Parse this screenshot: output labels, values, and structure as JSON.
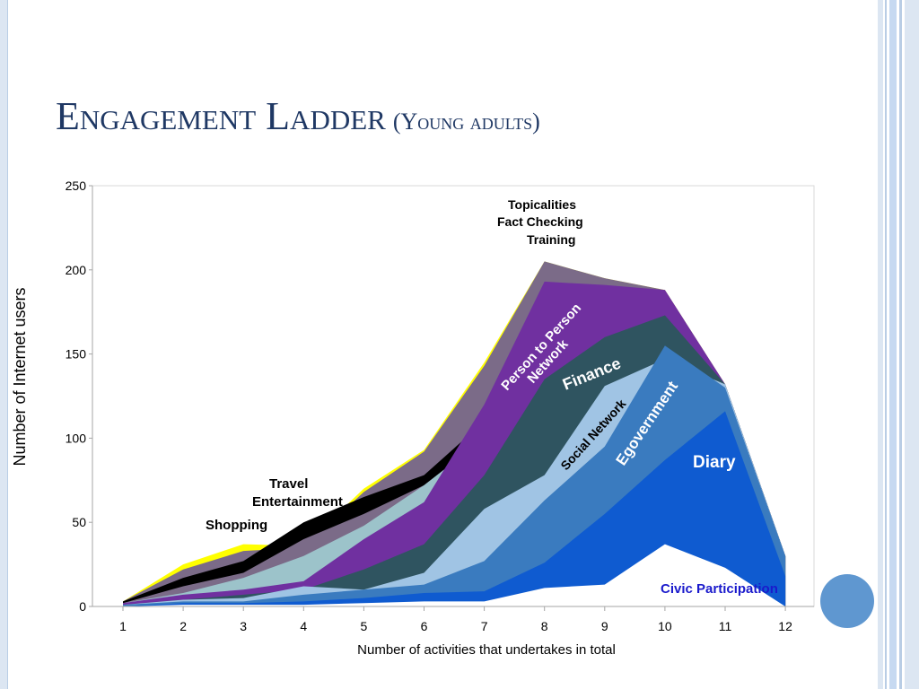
{
  "slide": {
    "title": "Engagement Ladder",
    "subtitle": "(Young adults)"
  },
  "chart_data": {
    "type": "area",
    "ylabel": "Number of Internet users",
    "xlabel": "Number of activities that undertakes in total",
    "xlim": [
      1,
      12
    ],
    "ylim": [
      0,
      250
    ],
    "x_ticks": [
      1,
      2,
      3,
      4,
      5,
      6,
      7,
      8,
      9,
      10,
      11,
      12
    ],
    "y_ticks": [
      0,
      50,
      100,
      150,
      200,
      250
    ],
    "colors": {
      "topicalities": "#ffff00",
      "training": "#7b6b88",
      "travel": "#000000",
      "entertainment": "#7b6b88",
      "shopping": "#9cc3ca",
      "person_to_person": "#7030a0",
      "finance": "#2f5460",
      "social_network": "#a0c4e4",
      "egovernment": "#3a7bbf",
      "diary": "#0f5bd0",
      "civic": "#ffffff"
    },
    "series": [
      {
        "name": "Topicalities",
        "key": "topicalities",
        "upper": [
          3,
          25,
          37,
          36,
          70,
          93,
          145,
          205,
          195,
          188,
          132,
          30
        ],
        "lower": [
          0,
          0,
          0,
          0,
          0,
          0,
          0,
          0,
          0,
          0,
          0,
          0
        ]
      },
      {
        "name": "Training",
        "key": "training",
        "upper": [
          3,
          22,
          33,
          35,
          68,
          92,
          143,
          205,
          195,
          188,
          132,
          30
        ],
        "lower": [
          0,
          0,
          0,
          0,
          0,
          0,
          0,
          0,
          0,
          0,
          0,
          0
        ]
      },
      {
        "name": "Travel",
        "key": "travel",
        "upper": [
          3,
          17,
          27,
          50,
          65,
          78,
          110,
          150,
          150,
          150,
          132,
          30
        ],
        "lower": [
          0,
          0,
          0,
          0,
          0,
          0,
          0,
          0,
          0,
          0,
          0,
          0
        ]
      },
      {
        "name": "Entertainment",
        "key": "entertainment",
        "upper": [
          2,
          12,
          20,
          40,
          55,
          72,
          100,
          140,
          140,
          145,
          132,
          30
        ],
        "lower": [
          0,
          0,
          0,
          0,
          0,
          0,
          0,
          0,
          0,
          0,
          0,
          0
        ]
      },
      {
        "name": "Shopping",
        "key": "shopping",
        "upper": [
          2,
          8,
          17,
          30,
          48,
          72,
          100,
          135,
          135,
          140,
          132,
          30
        ],
        "lower": [
          0,
          0,
          0,
          0,
          0,
          0,
          0,
          0,
          0,
          0,
          0,
          0
        ]
      },
      {
        "name": "Person to Person Network",
        "key": "person_to_person",
        "upper": [
          2,
          7,
          10,
          15,
          40,
          62,
          120,
          193,
          191,
          188,
          132,
          30
        ],
        "lower": [
          0,
          0,
          0,
          0,
          0,
          0,
          0,
          0,
          0,
          0,
          0,
          0
        ]
      },
      {
        "name": "Finance",
        "key": "finance",
        "upper": [
          1,
          4,
          7,
          10,
          22,
          37,
          78,
          135,
          160,
          173,
          132,
          30
        ],
        "lower": [
          0,
          0,
          0,
          0,
          0,
          0,
          0,
          0,
          0,
          0,
          0,
          0
        ]
      },
      {
        "name": "Social Network",
        "key": "social_network",
        "upper": [
          1,
          4,
          5,
          12,
          10,
          20,
          58,
          78,
          131,
          147,
          132,
          30
        ],
        "lower": [
          0,
          0,
          0,
          0,
          0,
          0,
          0,
          0,
          0,
          0,
          0,
          0
        ]
      },
      {
        "name": "Egovernment",
        "key": "egovernment",
        "upper": [
          1,
          3,
          3,
          7,
          10,
          13,
          27,
          63,
          95,
          155,
          130,
          30
        ],
        "lower": [
          0,
          0,
          0,
          0,
          0,
          0,
          0,
          0,
          0,
          0,
          0,
          0
        ]
      },
      {
        "name": "Diary",
        "key": "diary",
        "upper": [
          0,
          2,
          2,
          3,
          5,
          8,
          9,
          26,
          55,
          87,
          116,
          18
        ],
        "lower": [
          0,
          0,
          0,
          0,
          0,
          0,
          0,
          0,
          0,
          0,
          0,
          0
        ]
      },
      {
        "name": "Civic Participation",
        "key": "civic",
        "upper": [
          0,
          1,
          1,
          1,
          2,
          3,
          3,
          11,
          13,
          37,
          23,
          0
        ],
        "lower": [
          0,
          0,
          0,
          0,
          0,
          0,
          0,
          0,
          0,
          0,
          0,
          0
        ]
      }
    ],
    "labels": {
      "topicalities": "Topicalities",
      "fact_checking": "Fact Checking",
      "training": "Training",
      "person_to_person": "Person to Person",
      "network": "Network",
      "finance": "Finance",
      "social_network": "Social Network",
      "egovernment": "Egovernment",
      "diary": "Diary",
      "civic": "Civic Participation",
      "travel": "Travel",
      "entertainment": "Entertainment",
      "shopping": "Shopping"
    }
  }
}
